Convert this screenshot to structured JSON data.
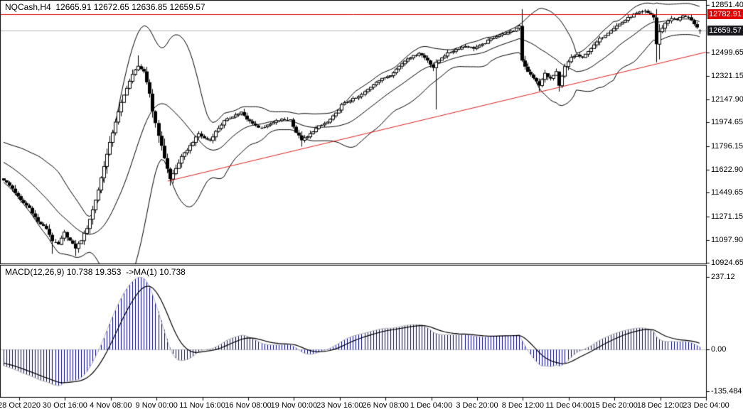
{
  "window": {
    "title": "NQCash,H4  12665.91 12672.65 12636.85 12659.57"
  },
  "macd_label": "MACD(12,26,9) 10.738 19.353  ->MA(1) 10.738",
  "chart_data": {
    "type": "candlestick",
    "symbol": "NQCash",
    "timeframe": "H4",
    "last_bar_ohlc": {
      "open": 12665.91,
      "high": 12672.65,
      "low": 12636.85,
      "close": 12659.57
    },
    "price_panel": {
      "ylim": [
        10920,
        12885
      ],
      "ticks": [
        12851.4,
        12499.65,
        12321.15,
        12147.9,
        11974.65,
        11796.15,
        11622.9,
        11449.65,
        11271.15,
        11097.9,
        10924.65
      ],
      "tick_labels": [
        "12851.40",
        "12499.65",
        "12321.15",
        "12147.90",
        "11974.65",
        "11796.15",
        "11622.90",
        "11449.65",
        "11271.15",
        "11097.90",
        "10924.65"
      ],
      "badges": [
        {
          "label": "12782.91",
          "value": 12782.91,
          "bg": "#e00000"
        },
        {
          "label": "12659.57",
          "value": 12659.57,
          "bg": "#17171c"
        }
      ],
      "hlines": [
        {
          "value": 12782.91,
          "color": "#e00000"
        },
        {
          "value": 12659.57,
          "color": "#b3b3b3"
        }
      ],
      "trendline": {
        "bar1": 57.3,
        "price1": 11536,
        "bar2": 245.2,
        "price2": 12500,
        "color": "#e02020"
      },
      "bollinger": {
        "period": 20,
        "deviation": 2
      }
    },
    "bars": {
      "count": 244,
      "keyframes": [
        [
          -30,
          11880
        ],
        [
          -12,
          11720
        ],
        [
          0,
          11545
        ],
        [
          3,
          11480
        ],
        [
          6,
          11390
        ],
        [
          9,
          11335
        ],
        [
          12,
          11230
        ],
        [
          15,
          11180
        ],
        [
          17,
          11090
        ],
        [
          19,
          11060
        ],
        [
          21,
          11150
        ],
        [
          23,
          11090
        ],
        [
          25,
          11035
        ],
        [
          27,
          11095
        ],
        [
          29,
          11185
        ],
        [
          31,
          11320
        ],
        [
          33,
          11470
        ],
        [
          35,
          11650
        ],
        [
          37,
          11820
        ],
        [
          39,
          11980
        ],
        [
          41,
          12120
        ],
        [
          43,
          12235
        ],
        [
          45,
          12330
        ],
        [
          47,
          12400
        ],
        [
          49,
          12350
        ],
        [
          51,
          12190
        ],
        [
          52,
          12060
        ],
        [
          54,
          11880
        ],
        [
          56,
          11710
        ],
        [
          58,
          11550
        ],
        [
          60,
          11630
        ],
        [
          62,
          11715
        ],
        [
          64,
          11770
        ],
        [
          66,
          11830
        ],
        [
          68,
          11890
        ],
        [
          70,
          11855
        ],
        [
          72,
          11840
        ],
        [
          74,
          11905
        ],
        [
          77,
          11985
        ],
        [
          80,
          12020
        ],
        [
          83,
          12050
        ],
        [
          85,
          11995
        ],
        [
          87,
          11970
        ],
        [
          89,
          11935
        ],
        [
          92,
          11950
        ],
        [
          95,
          11985
        ],
        [
          98,
          12000
        ],
        [
          100,
          11995
        ],
        [
          102,
          11900
        ],
        [
          104,
          11845
        ],
        [
          106,
          11865
        ],
        [
          108,
          11910
        ],
        [
          110,
          11945
        ],
        [
          113,
          11975
        ],
        [
          116,
          12040
        ],
        [
          118,
          12105
        ],
        [
          121,
          12140
        ],
        [
          124,
          12165
        ],
        [
          127,
          12220
        ],
        [
          130,
          12280
        ],
        [
          133,
          12310
        ],
        [
          135,
          12330
        ],
        [
          138,
          12395
        ],
        [
          141,
          12455
        ],
        [
          143,
          12470
        ],
        [
          145,
          12495
        ],
        [
          148,
          12440
        ],
        [
          150,
          12385
        ],
        [
          151,
          12420
        ],
        [
          153,
          12460
        ],
        [
          155,
          12490
        ],
        [
          158,
          12520
        ],
        [
          161,
          12545
        ],
        [
          164,
          12530
        ],
        [
          167,
          12555
        ],
        [
          170,
          12600
        ],
        [
          173,
          12630
        ],
        [
          176,
          12645
        ],
        [
          178,
          12660
        ],
        [
          180,
          12700
        ],
        [
          181,
          12440
        ],
        [
          183,
          12350
        ],
        [
          185,
          12310
        ],
        [
          187,
          12250
        ],
        [
          189,
          12340
        ],
        [
          191,
          12300
        ],
        [
          193,
          12350
        ],
        [
          194,
          12245
        ],
        [
          196,
          12390
        ],
        [
          198,
          12460
        ],
        [
          200,
          12480
        ],
        [
          202,
          12455
        ],
        [
          204,
          12510
        ],
        [
          206,
          12550
        ],
        [
          208,
          12600
        ],
        [
          210,
          12630
        ],
        [
          212,
          12665
        ],
        [
          214,
          12695
        ],
        [
          216,
          12725
        ],
        [
          218,
          12755
        ],
        [
          220,
          12780
        ],
        [
          222,
          12795
        ],
        [
          224,
          12805
        ],
        [
          226,
          12780
        ],
        [
          227,
          12760
        ],
        [
          228,
          12560
        ],
        [
          229,
          12650
        ],
        [
          231,
          12715
        ],
        [
          233,
          12755
        ],
        [
          235,
          12740
        ],
        [
          237,
          12775
        ],
        [
          239,
          12760
        ],
        [
          241,
          12705
        ],
        [
          243,
          12659.57
        ]
      ],
      "spikes": [
        {
          "b": 17,
          "low": 10992
        },
        {
          "b": 25,
          "low": 10976
        },
        {
          "b": 47,
          "high": 12476
        },
        {
          "b": 58,
          "low": 11502
        },
        {
          "b": 104,
          "low": 11794
        },
        {
          "b": 151,
          "low": 12072
        },
        {
          "b": 181,
          "low": 12426
        },
        {
          "b": 187,
          "low": 12208
        },
        {
          "b": 194,
          "low": 12206
        },
        {
          "b": 224,
          "high": 12822
        },
        {
          "b": 228,
          "low": 12424
        },
        {
          "b": 229,
          "low": 12446
        }
      ]
    },
    "macd_panel": {
      "ylim": [
        -155,
        275
      ],
      "ticks": [
        {
          "value": 237.12,
          "label": "237.12"
        },
        {
          "value": 0,
          "label": "0.00"
        },
        {
          "value": -135.484,
          "label": "-135.484"
        }
      ],
      "peak_value": 237.12,
      "colors": {
        "histogram": "#00008b",
        "macd_line": "#b8b8b8",
        "signal_line": "#000000",
        "zero_line": "#c8c8c8"
      }
    },
    "time_axis": {
      "labels": [
        "28 Oct 2020",
        "30 Oct 16:00",
        "4 Nov 08:00",
        "9 Nov 00:00",
        "11 Nov 16:00",
        "16 Nov 08:00",
        "19 Nov 00:00",
        "23 Nov 16:00",
        "26 Nov 08:00",
        "1 Dec 04:00",
        "3 Dec 20:00",
        "8 Dec 12:00",
        "11 Dec 04:00",
        "15 Dec 20:00",
        "18 Dec 12:00",
        "23 Dec 04:00"
      ]
    },
    "colors": {
      "background": "#ffffff",
      "text": "#000000",
      "candle_stroke": "#000000",
      "candle_up_fill": "#ffffff",
      "candle_down_fill": "#000000",
      "bollinger": "#000000",
      "panel_border": "#000000"
    }
  }
}
